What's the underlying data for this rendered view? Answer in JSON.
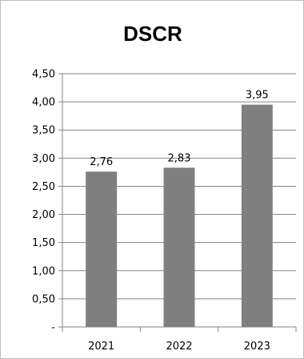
{
  "chart_data": {
    "type": "bar",
    "title": "DSCR",
    "categories": [
      "2021",
      "2022",
      "2023"
    ],
    "values": [
      2.76,
      2.83,
      3.95
    ],
    "data_labels": [
      "2,76",
      "2,83",
      "3,95"
    ],
    "ylim": [
      0,
      4.5
    ],
    "y_ticks": [
      {
        "value": 4.5,
        "label": "4,50"
      },
      {
        "value": 4.0,
        "label": "4,00"
      },
      {
        "value": 3.5,
        "label": "3,50"
      },
      {
        "value": 3.0,
        "label": "3,00"
      },
      {
        "value": 2.5,
        "label": "2,50"
      },
      {
        "value": 2.0,
        "label": "2,00"
      },
      {
        "value": 1.5,
        "label": "1,50"
      },
      {
        "value": 1.0,
        "label": "1,00"
      },
      {
        "value": 0.5,
        "label": "0,50"
      },
      {
        "value": 0,
        "label": "-"
      }
    ],
    "grid": true,
    "legend": "none",
    "bar_color": "#7f7f7f",
    "grid_color": "#868686"
  }
}
